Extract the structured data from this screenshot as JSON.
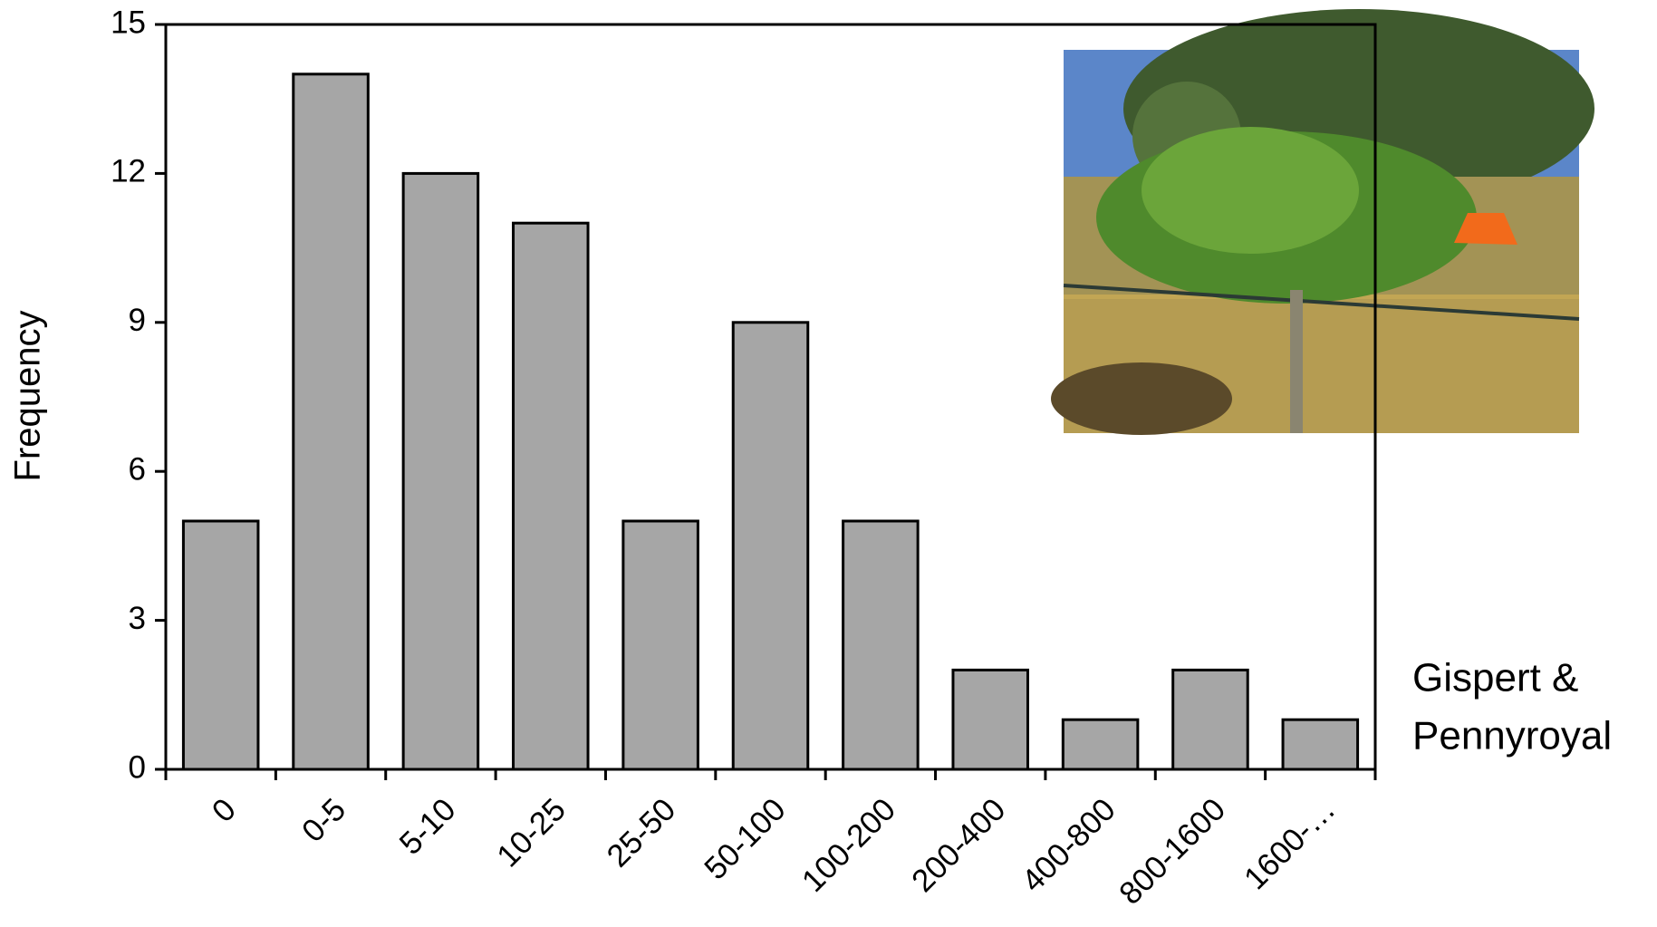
{
  "chart_data": {
    "type": "bar",
    "y_label": "Frequency",
    "categories": [
      "0",
      "0-5",
      "5-10",
      "10-25",
      "25-50",
      "50-100",
      "100-200",
      "200-400",
      "400-800",
      "800-1600",
      "1600-…"
    ],
    "values": [
      5,
      14,
      12,
      11,
      5,
      9,
      5,
      2,
      1,
      2,
      1
    ],
    "color": "#a6a6a6",
    "ylim": [
      0,
      15
    ],
    "yticks": [
      0,
      3,
      6,
      9,
      12,
      15
    ],
    "annotation": [
      "Gispert &",
      "Pennyroyal"
    ]
  }
}
